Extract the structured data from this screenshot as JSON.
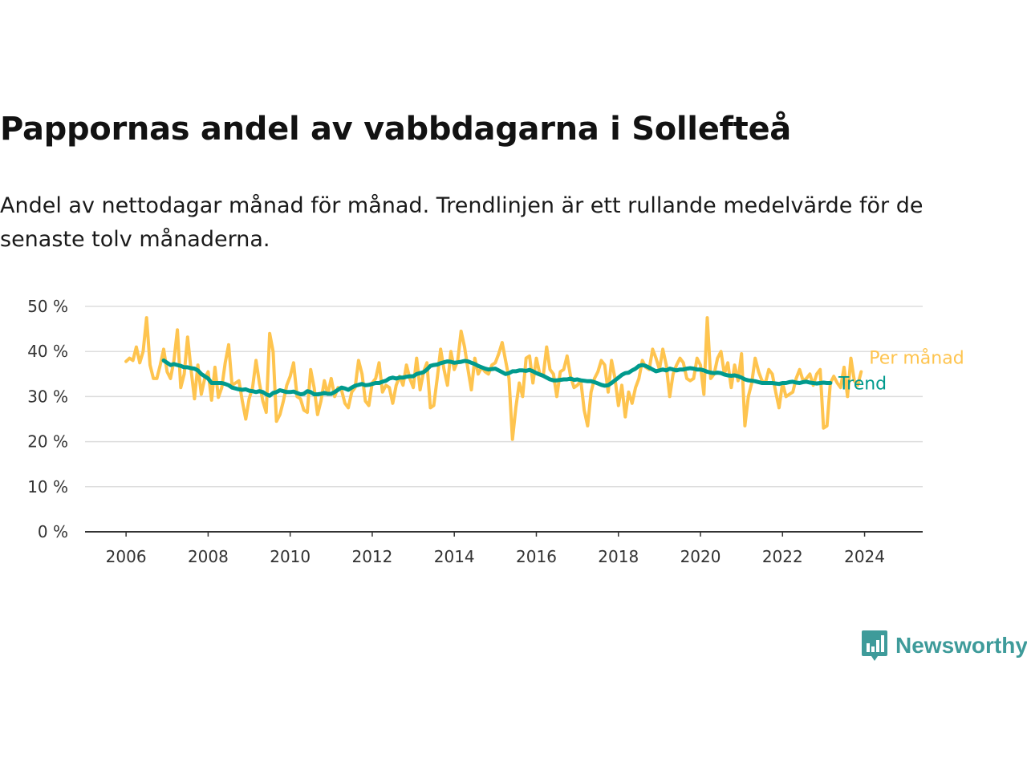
{
  "header": {
    "title": "Pappornas andel av vabbdagarna i Sollefteå",
    "subtitle": "Andel av nettodagar månad för månad. Trendlinjen är ett rullande medelvärde för de senaste tolv månaderna."
  },
  "brand": {
    "name": "Newsworthy",
    "color": "#3e9b9a"
  },
  "chart_data": {
    "type": "line",
    "title": "Pappornas andel av vabbdagarna i Sollefteå",
    "xlabel": "",
    "ylabel": "",
    "x_ticks": [
      "2006",
      "2008",
      "2010",
      "2012",
      "2014",
      "2016",
      "2018",
      "2020",
      "2022",
      "2024"
    ],
    "y_ticks": [
      "0 %",
      "10 %",
      "20 %",
      "30 %",
      "40 %",
      "50 %"
    ],
    "ylim": [
      0,
      50
    ],
    "xlim": [
      "2005-01",
      "2025-06"
    ],
    "grid": true,
    "legend": "inline labels at line ends (right)",
    "series": [
      {
        "name": "Per månad",
        "color": "#fec44f",
        "x_start": "2006-01",
        "x_step": "1 month",
        "values": [
          37.8,
          38.5,
          38,
          41,
          37.5,
          40,
          47.5,
          37,
          34,
          34,
          37,
          40.5,
          35.5,
          34,
          38,
          44.8,
          32,
          35,
          43.2,
          36,
          29.5,
          37,
          30.5,
          34,
          35.5,
          29.2,
          36.5,
          29.8,
          32,
          37.5,
          41.5,
          32.5,
          33,
          33.5,
          29,
          25,
          29.5,
          32,
          38,
          33,
          29,
          26.5,
          44,
          40,
          24.5,
          26,
          29,
          32.5,
          34.5,
          37.5,
          30,
          29.5,
          27,
          26.5,
          36,
          32,
          26,
          29,
          33.5,
          30.5,
          34,
          30,
          32,
          31.5,
          28.5,
          27.5,
          31,
          32,
          38,
          35,
          29,
          28,
          33,
          34,
          37.5,
          31,
          32.5,
          32,
          28.5,
          32.5,
          34.5,
          32.5,
          37,
          34,
          32,
          38.5,
          31.5,
          35.5,
          37.5,
          27.5,
          28,
          34,
          40.5,
          36,
          32.5,
          40,
          36,
          38,
          44.5,
          41,
          36,
          31.5,
          38.5,
          35,
          36.5,
          35.5,
          35,
          37,
          37.5,
          39.5,
          42,
          38,
          34,
          20.5,
          27.5,
          33,
          30,
          38.5,
          39,
          33,
          38.5,
          35,
          34.5,
          41,
          36,
          35,
          30,
          35.5,
          36,
          39,
          34.5,
          32,
          32.5,
          33.5,
          27,
          23.5,
          31,
          34,
          35.5,
          38,
          37,
          31,
          38,
          34,
          28,
          32.5,
          25.5,
          31,
          28.5,
          32,
          34,
          38,
          36.5,
          36,
          40.5,
          38.5,
          36,
          40.5,
          37,
          30,
          35,
          37,
          38.5,
          37.5,
          34,
          33.5,
          34,
          38.5,
          37,
          30.5,
          47.5,
          34,
          35,
          38.5,
          40,
          35,
          37.5,
          32,
          37,
          33.5,
          39.5,
          23.5,
          30,
          33,
          38.5,
          35.5,
          33.5,
          33,
          36,
          35,
          31,
          27.5,
          33,
          30,
          30.5,
          31,
          34,
          36,
          33.5,
          34,
          35,
          32.5,
          35,
          36,
          23,
          23.5,
          33,
          34.5,
          33,
          32,
          36.5,
          30,
          38.5,
          33.5,
          32.5,
          35.5
        ]
      },
      {
        "name": "Trend",
        "color": "#009a8d",
        "x_start": "2006-12",
        "x_step": "1 month",
        "values": [
          38,
          37.5,
          37,
          37.2,
          37,
          36.8,
          36.5,
          36.5,
          36.3,
          36.2,
          35.8,
          35,
          34.5,
          34,
          33,
          33,
          33,
          33,
          32.8,
          32.5,
          32,
          31.8,
          31.6,
          31.5,
          31.6,
          31.3,
          31.2,
          31,
          31.2,
          31,
          30.5,
          30.2,
          30.8,
          31,
          31.4,
          31.2,
          31,
          31,
          31.1,
          30.8,
          30.5,
          30.6,
          31.2,
          31,
          30.5,
          30.5,
          30.6,
          30.8,
          30.6,
          30.6,
          31,
          31.5,
          32,
          31.8,
          31.5,
          32,
          32.4,
          32.6,
          32.8,
          32.5,
          32.6,
          32.8,
          33,
          33,
          33.3,
          33.5,
          34,
          34.2,
          34,
          34.2,
          34.2,
          34.4,
          34.5,
          34.5,
          35,
          35.2,
          35.4,
          36,
          36.8,
          37,
          37.1,
          37.4,
          37.6,
          37.8,
          37.7,
          37.5,
          37.6,
          37.7,
          37.9,
          37.8,
          37.5,
          37.2,
          36.8,
          36.5,
          36.2,
          36,
          36.1,
          36.2,
          35.8,
          35.4,
          35,
          35.2,
          35.6,
          35.6,
          35.8,
          35.8,
          35.7,
          35.9,
          35.6,
          35.2,
          34.9,
          34.6,
          34.2,
          33.8,
          33.6,
          33.6,
          33.7,
          33.8,
          33.8,
          34,
          33.7,
          33.8,
          33.6,
          33.5,
          33.4,
          33.4,
          33.2,
          32.9,
          32.6,
          32.4,
          32.5,
          33,
          33.6,
          34.2,
          34.8,
          35.2,
          35.3,
          35.8,
          36.2,
          36.8,
          37,
          36.8,
          36.4,
          36,
          35.6,
          35.8,
          36,
          35.8,
          36.2,
          36,
          35.8,
          36,
          36,
          36.2,
          36.3,
          36.2,
          36,
          36,
          35.8,
          35.5,
          35.3,
          35.2,
          35.3,
          35.2,
          34.9,
          34.7,
          34.6,
          34.7,
          34.5,
          34.2,
          33.8,
          33.6,
          33.5,
          33.4,
          33.2,
          33,
          33,
          33,
          33,
          32.9,
          32.8,
          33,
          33,
          33.2,
          33.3,
          33.1,
          33,
          33.2,
          33.3,
          33.1,
          33,
          32.9,
          33,
          33.1,
          33,
          33
        ]
      }
    ]
  }
}
